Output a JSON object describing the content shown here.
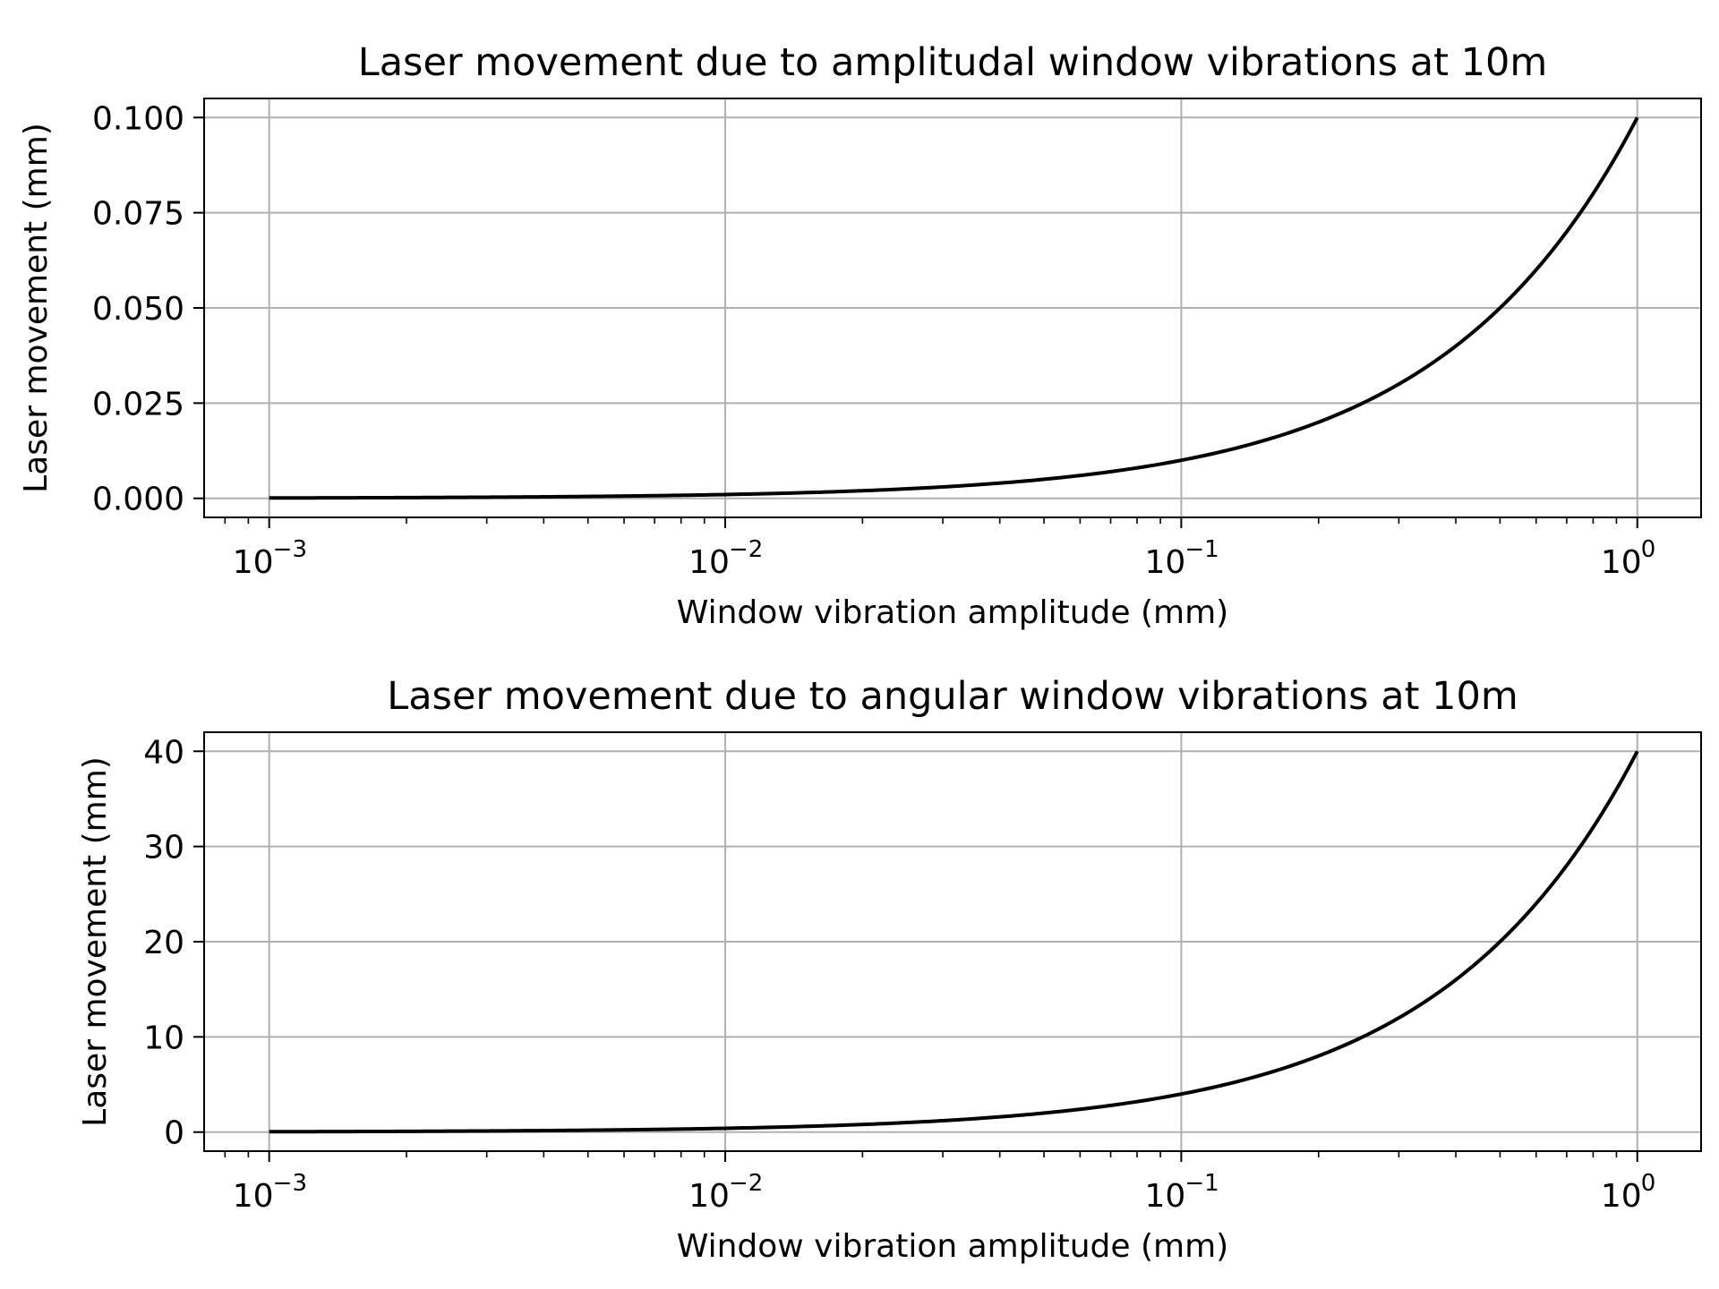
{
  "colors": {
    "line": "#000000",
    "grid": "#b0b0b0",
    "axes": "#000000",
    "background": "#ffffff"
  },
  "chart_data": [
    {
      "type": "line",
      "title": "Laser movement due to amplitudal window vibrations at 10m",
      "xlabel": "Window vibration amplitude (mm)",
      "ylabel": "Laser movement (mm)",
      "xscale": "log",
      "xlim": [
        0.00072,
        1.38
      ],
      "ylim": [
        -0.005,
        0.105
      ],
      "grid": true,
      "x_ticks": [
        0.001,
        0.01,
        0.1,
        1
      ],
      "x_tick_labels": [
        {
          "base": "10",
          "exp": "−3"
        },
        {
          "base": "10",
          "exp": "−2"
        },
        {
          "base": "10",
          "exp": "−1"
        },
        {
          "base": "10",
          "exp": "0"
        }
      ],
      "y_ticks": [
        0,
        0.025,
        0.05,
        0.075,
        0.1
      ],
      "y_tick_labels": [
        "0.000",
        "0.025",
        "0.050",
        "0.075",
        "0.100"
      ],
      "series": [
        {
          "x": [
            0.001,
            0.002,
            0.005,
            0.01,
            0.02,
            0.05,
            0.1,
            0.2,
            0.3,
            0.5,
            0.7,
            1.0
          ],
          "y": [
            0.0001,
            0.0002,
            0.0005,
            0.001,
            0.002,
            0.005,
            0.01,
            0.02,
            0.03,
            0.05,
            0.07,
            0.1
          ]
        }
      ]
    },
    {
      "type": "line",
      "title": "Laser movement due to angular window vibrations at 10m",
      "xlabel": "Window vibration amplitude (mm)",
      "ylabel": "Laser movement (mm)",
      "xscale": "log",
      "xlim": [
        0.00072,
        1.38
      ],
      "ylim": [
        -2,
        42
      ],
      "grid": true,
      "x_ticks": [
        0.001,
        0.01,
        0.1,
        1
      ],
      "x_tick_labels": [
        {
          "base": "10",
          "exp": "−3"
        },
        {
          "base": "10",
          "exp": "−2"
        },
        {
          "base": "10",
          "exp": "−1"
        },
        {
          "base": "10",
          "exp": "0"
        }
      ],
      "y_ticks": [
        0,
        10,
        20,
        30,
        40
      ],
      "y_tick_labels": [
        "0",
        "10",
        "20",
        "30",
        "40"
      ],
      "series": [
        {
          "x": [
            0.001,
            0.002,
            0.005,
            0.01,
            0.02,
            0.05,
            0.1,
            0.2,
            0.3,
            0.5,
            0.7,
            1.0
          ],
          "y": [
            0.04,
            0.08,
            0.2,
            0.4,
            0.8,
            2.0,
            4.0,
            8.0,
            12.0,
            20.0,
            28.0,
            40.0
          ]
        }
      ]
    }
  ]
}
